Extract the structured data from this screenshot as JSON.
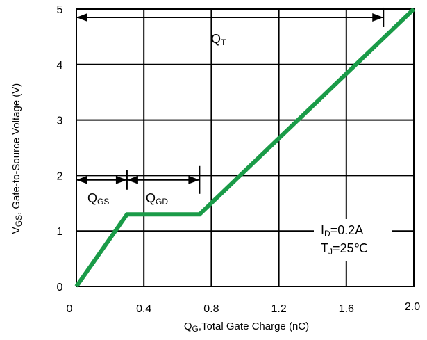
{
  "chart_data": {
    "type": "line",
    "xlabel": {
      "main": "Q",
      "sub": "G",
      "rest": ",Total Gate Charge (nC)"
    },
    "ylabel": {
      "main": "V",
      "sub": "GS",
      "rest": ", Gate-to-Source Voltage (V)"
    },
    "xlim": [
      0,
      2.0
    ],
    "ylim": [
      0,
      5
    ],
    "x_ticks": [
      "0",
      "0.4",
      "0.8",
      "1.2",
      "1.6",
      "2.0"
    ],
    "x_tick_values": [
      0,
      0.4,
      0.8,
      1.2,
      1.6,
      2.0
    ],
    "y_ticks": [
      "0",
      "1",
      "2",
      "3",
      "4",
      "5"
    ],
    "y_tick_values": [
      0,
      1,
      2,
      3,
      4,
      5
    ],
    "grid": true,
    "series": [
      {
        "color": "#1a9b48",
        "x": [
          0,
          0.3,
          0.73,
          2.0
        ],
        "y": [
          0,
          1.3,
          1.3,
          5.0
        ]
      }
    ],
    "annotations": {
      "qt": {
        "main": "Q",
        "sub": "T",
        "x1": 0,
        "x2": 1.82,
        "y": 4.85
      },
      "qgs": {
        "main": "Q",
        "sub": "GS",
        "x1": 0,
        "x2": 0.3,
        "y": 1.92
      },
      "qgd": {
        "main": "Q",
        "sub": "GD",
        "x1": 0.3,
        "x2": 0.73,
        "y": 1.92
      },
      "id": {
        "main": "I",
        "sub": "D",
        "rest": "=0.2A"
      },
      "tj": {
        "main": "T",
        "sub": "J",
        "rest": "=25℃"
      }
    }
  }
}
